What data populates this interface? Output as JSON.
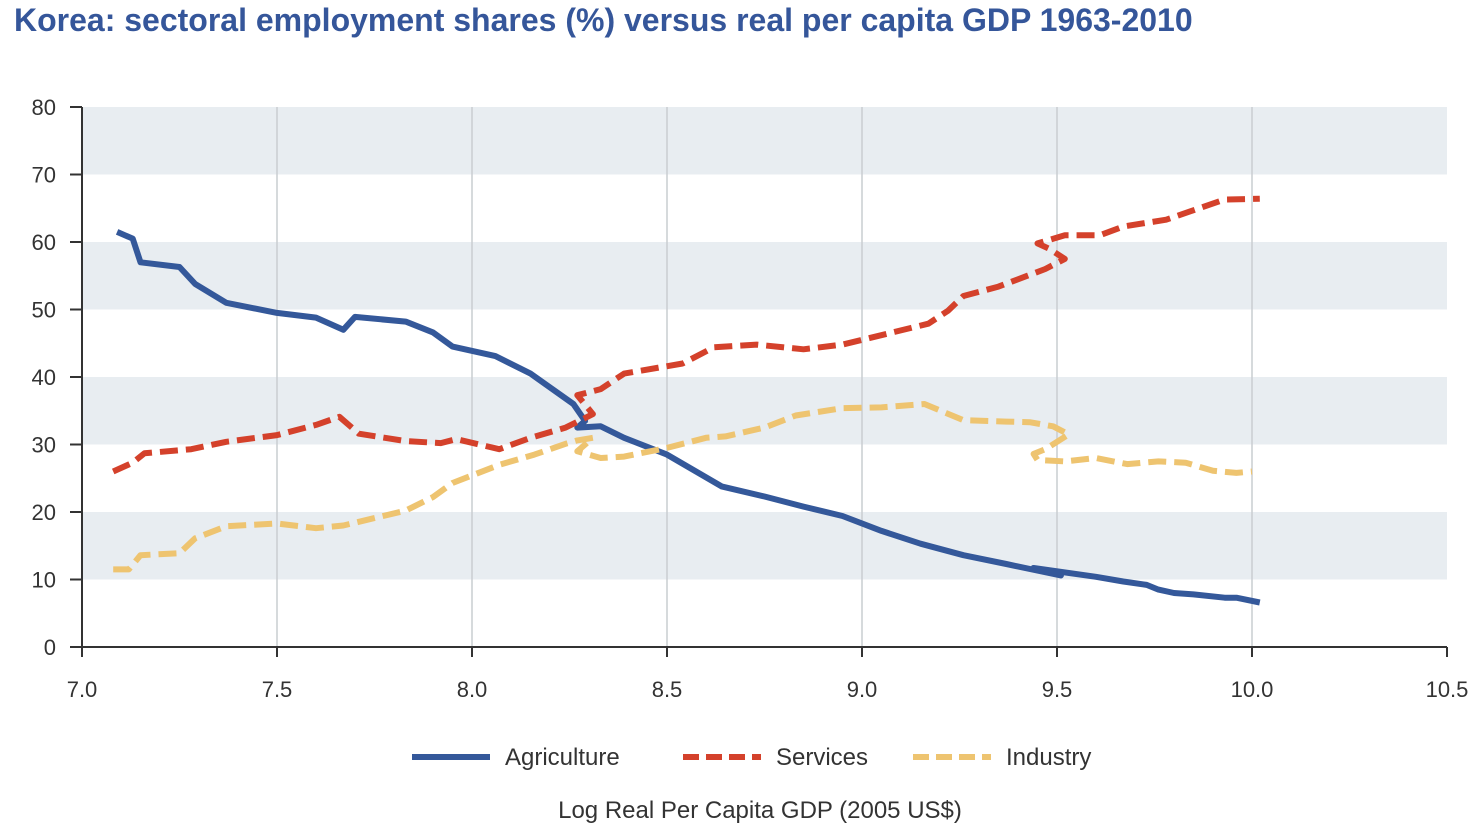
{
  "chart_data": {
    "type": "line",
    "title": "Korea: sectoral employment shares (%) versus real per capita GDP 1963-2010",
    "xlabel": "Log Real Per Capita GDP (2005 US$)",
    "ylabel": "",
    "xlim": [
      7.0,
      10.5
    ],
    "ylim": [
      0,
      80
    ],
    "x_ticks": [
      "7.0",
      "7.5",
      "8.0",
      "8.5",
      "9.0",
      "9.5",
      "10.0",
      "10.5"
    ],
    "y_ticks": [
      "0",
      "10",
      "20",
      "30",
      "40",
      "50",
      "60",
      "70",
      "80"
    ],
    "grid": "horizontal bands and vertical lines",
    "legend_position": "bottom",
    "series": [
      {
        "name": "Agriculture",
        "color": "#34589a",
        "style": "solid",
        "points": [
          [
            7.09,
            61.5
          ],
          [
            7.13,
            60.5
          ],
          [
            7.15,
            57
          ],
          [
            7.25,
            56.3
          ],
          [
            7.29,
            53.8
          ],
          [
            7.37,
            51
          ],
          [
            7.5,
            49.5
          ],
          [
            7.6,
            48.8
          ],
          [
            7.67,
            47
          ],
          [
            7.7,
            48.9
          ],
          [
            7.83,
            48.2
          ],
          [
            7.9,
            46.6
          ],
          [
            7.95,
            44.5
          ],
          [
            8.06,
            43.1
          ],
          [
            8.15,
            40.5
          ],
          [
            8.26,
            36
          ],
          [
            8.29,
            33.5
          ],
          [
            8.27,
            32.5
          ],
          [
            8.33,
            32.7
          ],
          [
            8.39,
            31
          ],
          [
            8.5,
            28.5
          ],
          [
            8.64,
            23.8
          ],
          [
            8.75,
            22.3
          ],
          [
            8.85,
            20.8
          ],
          [
            8.95,
            19.4
          ],
          [
            9.05,
            17.2
          ],
          [
            9.15,
            15.3
          ],
          [
            9.26,
            13.6
          ],
          [
            9.37,
            12.3
          ],
          [
            9.51,
            10.6
          ],
          [
            9.44,
            11.7
          ],
          [
            9.6,
            10.4
          ],
          [
            9.67,
            9.7
          ],
          [
            9.73,
            9.2
          ],
          [
            9.76,
            8.5
          ],
          [
            9.8,
            8
          ],
          [
            9.85,
            7.8
          ],
          [
            9.93,
            7.3
          ],
          [
            9.96,
            7.3
          ],
          [
            10.02,
            6.6
          ]
        ]
      },
      {
        "name": "Services",
        "color": "#d4412b",
        "style": "dashed",
        "points": [
          [
            7.08,
            26
          ],
          [
            7.13,
            27.3
          ],
          [
            7.16,
            28.7
          ],
          [
            7.28,
            29.3
          ],
          [
            7.37,
            30.4
          ],
          [
            7.5,
            31.4
          ],
          [
            7.6,
            32.9
          ],
          [
            7.66,
            34.1
          ],
          [
            7.71,
            31.6
          ],
          [
            7.83,
            30.5
          ],
          [
            7.92,
            30.2
          ],
          [
            7.96,
            30.8
          ],
          [
            8.07,
            29.3
          ],
          [
            8.15,
            31
          ],
          [
            8.24,
            32.5
          ],
          [
            8.31,
            34.5
          ],
          [
            8.27,
            37.3
          ],
          [
            8.33,
            38.2
          ],
          [
            8.39,
            40.5
          ],
          [
            8.54,
            42
          ],
          [
            8.62,
            44.4
          ],
          [
            8.73,
            44.8
          ],
          [
            8.85,
            44.1
          ],
          [
            8.95,
            44.8
          ],
          [
            9.17,
            47.9
          ],
          [
            9.22,
            49.8
          ],
          [
            9.26,
            52
          ],
          [
            9.35,
            53.4
          ],
          [
            9.47,
            56
          ],
          [
            9.52,
            57.5
          ],
          [
            9.48,
            59
          ],
          [
            9.45,
            59.8
          ],
          [
            9.52,
            61
          ],
          [
            9.61,
            61
          ],
          [
            9.67,
            62.3
          ],
          [
            9.78,
            63.3
          ],
          [
            9.84,
            64.5
          ],
          [
            9.93,
            66.3
          ],
          [
            10.02,
            66.4
          ]
        ]
      },
      {
        "name": "Industry",
        "color": "#eec470",
        "style": "dashed",
        "points": [
          [
            7.08,
            11.5
          ],
          [
            7.12,
            11.5
          ],
          [
            7.15,
            13.6
          ],
          [
            7.25,
            13.9
          ],
          [
            7.29,
            16.1
          ],
          [
            7.37,
            17.9
          ],
          [
            7.5,
            18.3
          ],
          [
            7.6,
            17.6
          ],
          [
            7.67,
            18
          ],
          [
            7.83,
            20.2
          ],
          [
            7.9,
            22.2
          ],
          [
            7.95,
            24.3
          ],
          [
            8.07,
            27
          ],
          [
            8.16,
            28.5
          ],
          [
            8.24,
            30.1
          ],
          [
            8.27,
            30.6
          ],
          [
            8.31,
            31
          ],
          [
            8.27,
            29
          ],
          [
            8.33,
            28
          ],
          [
            8.39,
            28.2
          ],
          [
            8.5,
            29.5
          ],
          [
            8.6,
            31
          ],
          [
            8.65,
            31.2
          ],
          [
            8.75,
            32.5
          ],
          [
            8.83,
            34.3
          ],
          [
            8.95,
            35.4
          ],
          [
            9.05,
            35.5
          ],
          [
            9.16,
            36
          ],
          [
            9.26,
            33.6
          ],
          [
            9.37,
            33.4
          ],
          [
            9.43,
            33.3
          ],
          [
            9.49,
            32.7
          ],
          [
            9.53,
            31.5
          ],
          [
            9.47,
            29.3
          ],
          [
            9.44,
            28.6
          ],
          [
            9.45,
            27.7
          ],
          [
            9.52,
            27.5
          ],
          [
            9.6,
            28
          ],
          [
            9.68,
            27.1
          ],
          [
            9.76,
            27.5
          ],
          [
            9.83,
            27.3
          ],
          [
            9.9,
            26.1
          ],
          [
            9.96,
            25.8
          ],
          [
            10.0,
            26
          ]
        ]
      }
    ]
  }
}
